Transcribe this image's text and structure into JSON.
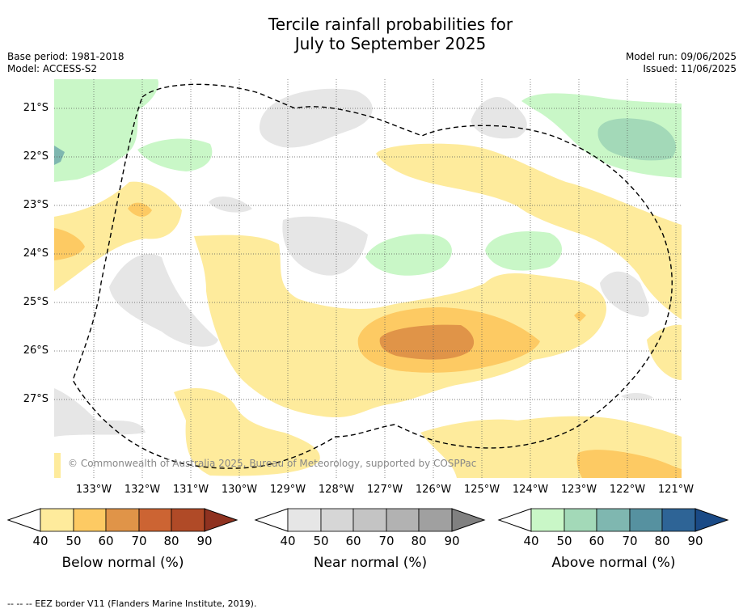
{
  "title_line1": "Tercile rainfall probabilities for",
  "title_line2": "July to September 2025",
  "base_period": "Base period: 1981-2018",
  "model": "Model: ACCESS-S2",
  "model_run": "Model run: 09/06/2025",
  "issued": "Issued: 11/06/2025",
  "lat_labels": [
    "21°S",
    "22°S",
    "23°S",
    "24°S",
    "25°S",
    "26°S",
    "27°S"
  ],
  "lon_labels": [
    "133°W",
    "132°W",
    "131°W",
    "130°W",
    "129°W",
    "128°W",
    "127°W",
    "126°W",
    "125°W",
    "124°W",
    "123°W",
    "122°W",
    "121°W"
  ],
  "copyright": "© Commonwealth of Australia 2025, Bureau of Meteorology, supported by COSPPac",
  "colorbars": [
    {
      "label": "Below normal (%)",
      "ticks": [
        "40",
        "50",
        "60",
        "70",
        "80",
        "90"
      ],
      "colors": [
        "#ffffff",
        "#feeb9c",
        "#fdca63",
        "#e09448",
        "#cc6433",
        "#b04a27",
        "#8f3220"
      ]
    },
    {
      "label": "Near normal (%)",
      "ticks": [
        "40",
        "50",
        "60",
        "70",
        "80",
        "90"
      ],
      "colors": [
        "#ffffff",
        "#e6e6e6",
        "#d6d6d6",
        "#c4c4c4",
        "#b2b2b2",
        "#a0a0a0",
        "#808080"
      ]
    },
    {
      "label": "Above normal (%)",
      "ticks": [
        "40",
        "50",
        "60",
        "70",
        "80",
        "90"
      ],
      "colors": [
        "#ffffff",
        "#c9f7c7",
        "#a3d9b8",
        "#7fb7b0",
        "#5691a0",
        "#2e6496",
        "#1a4a86"
      ]
    }
  ],
  "footnote": "--  --  -- EEZ border V11 (Flanders Marine Institute, 2019)."
}
